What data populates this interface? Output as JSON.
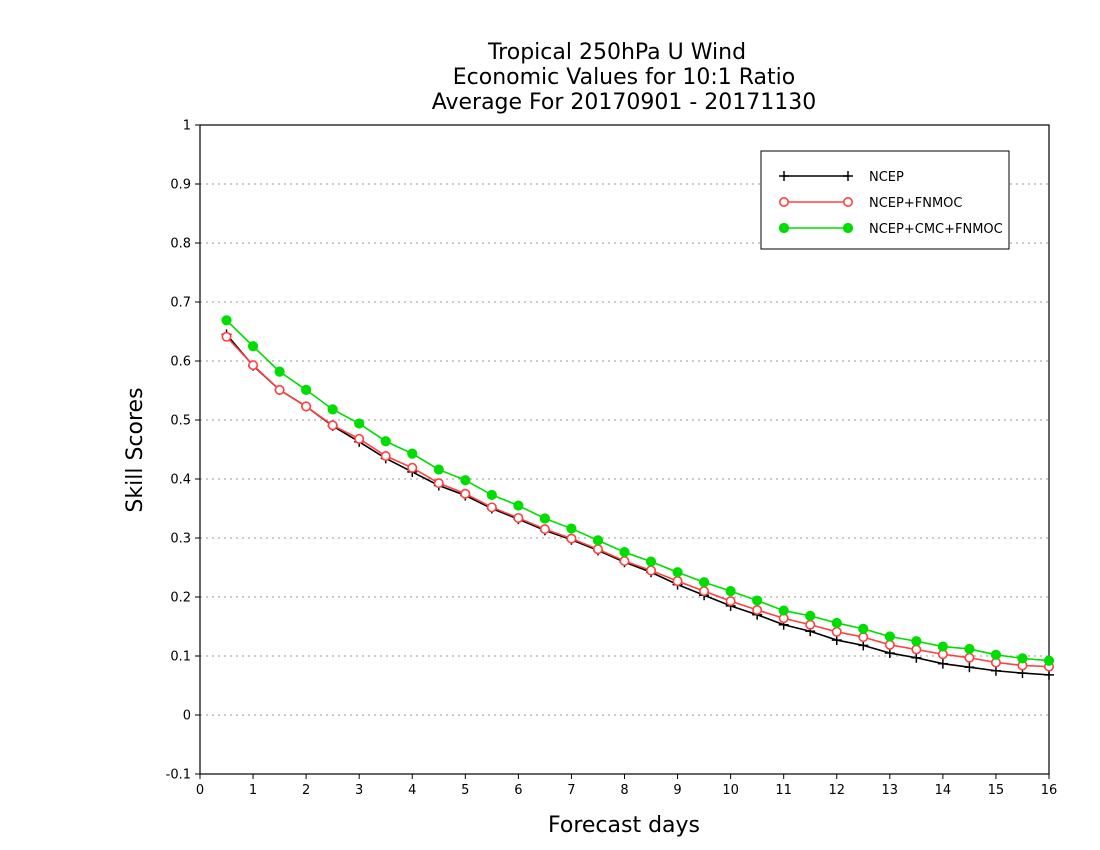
{
  "chart_data": {
    "type": "line",
    "title": [
      "Tropical 250hPa U Wind",
      "Economic Values for 10:1 Ratio",
      "Average For 20170901 - 20171130"
    ],
    "xlabel": "Forecast days",
    "ylabel": "Skill Scores",
    "xlim": [
      0,
      16
    ],
    "ylim": [
      -0.1,
      1
    ],
    "xticks": [
      "0",
      "1",
      "2",
      "3",
      "4",
      "5",
      "6",
      "7",
      "8",
      "9",
      "10",
      "11",
      "12",
      "13",
      "14",
      "15",
      "16"
    ],
    "yticks": [
      "-0.1",
      "0",
      "0.1",
      "0.2",
      "0.3",
      "0.4",
      "0.5",
      "0.6",
      "0.7",
      "0.8",
      "0.9",
      "1"
    ],
    "grid": "horizontal dotted",
    "legend_position": "top-right",
    "x": [
      0.5,
      1,
      1.5,
      2,
      2.5,
      3,
      3.5,
      4,
      4.5,
      5,
      5.5,
      6,
      6.5,
      7,
      7.5,
      8,
      8.5,
      9,
      9.5,
      10,
      10.5,
      11,
      11.5,
      12,
      12.5,
      13,
      13.5,
      14,
      14.5,
      15,
      15.5,
      16
    ],
    "series": [
      {
        "name": "NCEP",
        "color": "#000000",
        "marker": "plus",
        "values": [
          0.645,
          0.592,
          0.551,
          0.523,
          0.49,
          0.463,
          0.435,
          0.412,
          0.389,
          0.372,
          0.35,
          0.332,
          0.313,
          0.297,
          0.279,
          0.259,
          0.242,
          0.221,
          0.203,
          0.185,
          0.17,
          0.153,
          0.142,
          0.127,
          0.118,
          0.105,
          0.097,
          0.087,
          0.081,
          0.075,
          0.071,
          0.068
        ]
      },
      {
        "name": "NCEP+FNMOC",
        "color": "#ff4040",
        "marker": "open-circle",
        "values": [
          0.641,
          0.593,
          0.551,
          0.523,
          0.491,
          0.468,
          0.439,
          0.419,
          0.393,
          0.375,
          0.352,
          0.334,
          0.315,
          0.299,
          0.281,
          0.261,
          0.245,
          0.227,
          0.21,
          0.193,
          0.178,
          0.164,
          0.153,
          0.141,
          0.132,
          0.119,
          0.111,
          0.103,
          0.097,
          0.089,
          0.084,
          0.082
        ]
      },
      {
        "name": "NCEP+CMC+FNMOC",
        "color": "#00dd00",
        "marker": "filled-circle",
        "values": [
          0.669,
          0.625,
          0.582,
          0.551,
          0.518,
          0.494,
          0.464,
          0.443,
          0.416,
          0.398,
          0.373,
          0.355,
          0.333,
          0.316,
          0.296,
          0.276,
          0.26,
          0.242,
          0.225,
          0.21,
          0.194,
          0.177,
          0.168,
          0.156,
          0.146,
          0.133,
          0.125,
          0.116,
          0.112,
          0.102,
          0.096,
          0.092
        ]
      }
    ]
  }
}
